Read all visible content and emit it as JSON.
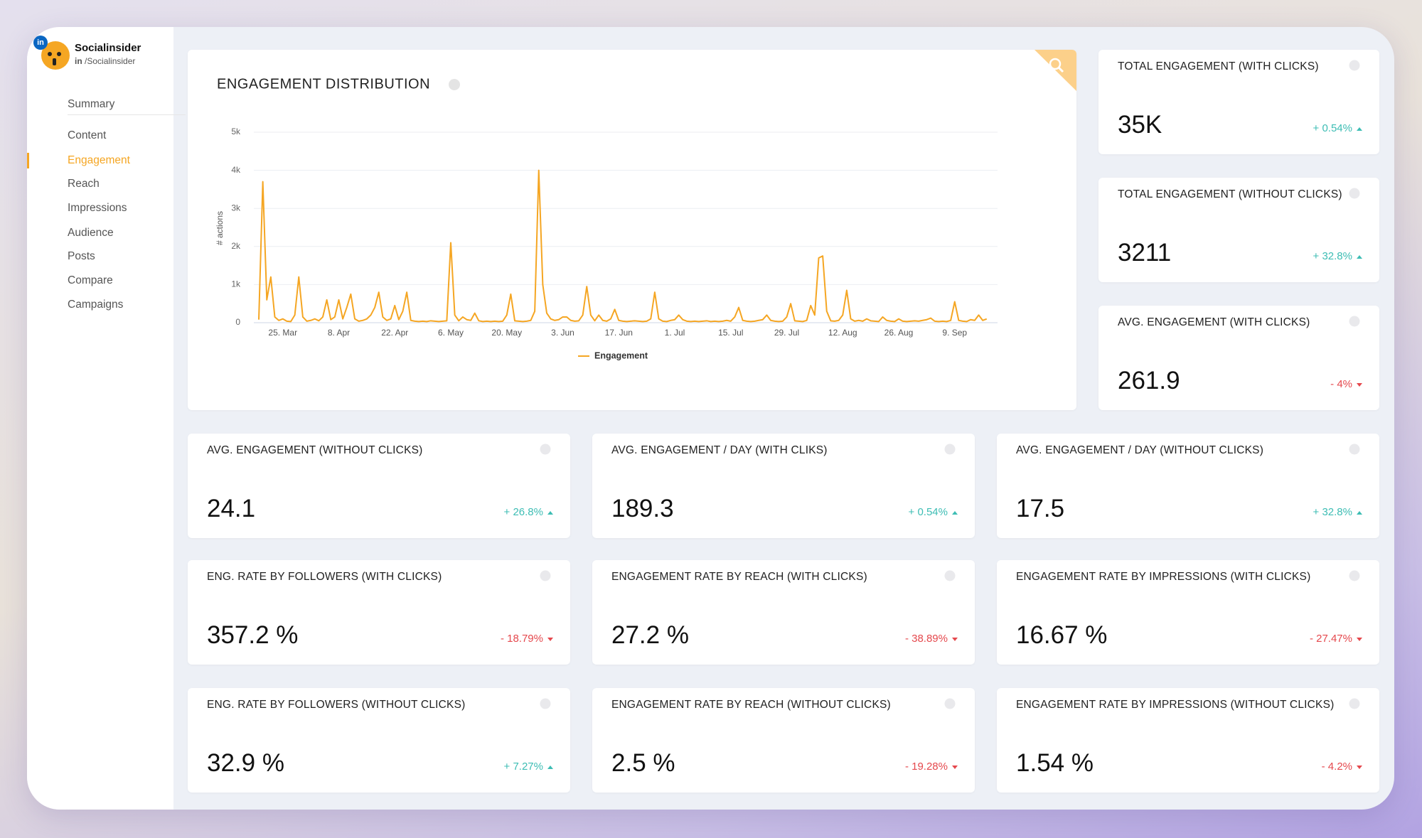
{
  "profile": {
    "network": "in",
    "name": "Socialinsider",
    "handle": "/Socialinsider"
  },
  "nav": [
    {
      "label": "Summary",
      "active": false
    },
    {
      "label": "Content",
      "active": false
    },
    {
      "label": "Engagement",
      "active": true
    },
    {
      "label": "Reach",
      "active": false
    },
    {
      "label": "Impressions",
      "active": false
    },
    {
      "label": "Audience",
      "active": false
    },
    {
      "label": "Posts",
      "active": false
    },
    {
      "label": "Compare",
      "active": false
    },
    {
      "label": "Campaigns",
      "active": false
    }
  ],
  "chart_data": {
    "type": "line",
    "title": "ENGAGEMENT DISTRIBUTION",
    "y_label": "# actions",
    "categories": [
      null,
      null,
      null,
      null,
      null,
      null,
      "25. Mar",
      null,
      null,
      null,
      null,
      null,
      null,
      null,
      null,
      null,
      null,
      null,
      null,
      null,
      "8. Apr",
      null,
      null,
      null,
      null,
      null,
      null,
      null,
      null,
      null,
      null,
      null,
      null,
      null,
      "22. Apr",
      null,
      null,
      null,
      null,
      null,
      null,
      null,
      null,
      null,
      null,
      null,
      null,
      null,
      "6. May",
      null,
      null,
      null,
      null,
      null,
      null,
      null,
      null,
      null,
      null,
      null,
      null,
      null,
      "20. May",
      null,
      null,
      null,
      null,
      null,
      null,
      null,
      null,
      null,
      null,
      null,
      null,
      null,
      "3. Jun",
      null,
      null,
      null,
      null,
      null,
      null,
      null,
      null,
      null,
      null,
      null,
      null,
      null,
      "17. Jun",
      null,
      null,
      null,
      null,
      null,
      null,
      null,
      null,
      null,
      null,
      null,
      null,
      null,
      "1. Jul",
      null,
      null,
      null,
      null,
      null,
      null,
      null,
      null,
      null,
      null,
      null,
      null,
      null,
      "15. Jul",
      null,
      null,
      null,
      null,
      null,
      null,
      null,
      null,
      null,
      null,
      null,
      null,
      null,
      "29. Jul",
      null,
      null,
      null,
      null,
      null,
      null,
      null,
      null,
      null,
      null,
      null,
      null,
      null,
      "12. Aug",
      null,
      null,
      null,
      null,
      null,
      null,
      null,
      null,
      null,
      null,
      null,
      null,
      null,
      "26. Aug",
      null,
      null,
      null,
      null,
      null,
      null,
      null,
      null,
      null,
      null,
      null,
      null,
      null,
      "9. Sep",
      null,
      null,
      null,
      null,
      null,
      null,
      null,
      null
    ],
    "series": [
      {
        "name": "Engagement",
        "color": "#f5a623",
        "values": [
          80,
          3700,
          600,
          1200,
          150,
          60,
          100,
          40,
          30,
          200,
          1200,
          150,
          40,
          60,
          100,
          50,
          150,
          600,
          80,
          150,
          600,
          100,
          400,
          750,
          100,
          40,
          60,
          100,
          200,
          400,
          800,
          150,
          60,
          100,
          450,
          80,
          300,
          800,
          60,
          40,
          30,
          40,
          30,
          50,
          40,
          30,
          40,
          50,
          2100,
          200,
          50,
          150,
          80,
          60,
          250,
          50,
          30,
          40,
          30,
          40,
          30,
          40,
          200,
          750,
          50,
          40,
          30,
          40,
          60,
          300,
          4000,
          1000,
          250,
          100,
          60,
          80,
          150,
          150,
          60,
          40,
          50,
          200,
          950,
          200,
          50,
          200,
          60,
          40,
          100,
          350,
          60,
          40,
          30,
          40,
          50,
          40,
          30,
          40,
          100,
          800,
          100,
          40,
          30,
          60,
          80,
          200,
          80,
          40,
          30,
          40,
          30,
          40,
          50,
          30,
          40,
          30,
          40,
          60,
          40,
          150,
          400,
          60,
          40,
          30,
          40,
          60,
          80,
          200,
          60,
          40,
          30,
          40,
          150,
          500,
          50,
          40,
          30,
          60,
          450,
          200,
          1700,
          1750,
          300,
          50,
          40,
          60,
          200,
          850,
          100,
          40,
          60,
          40,
          100,
          50,
          40,
          30,
          150,
          60,
          40,
          30,
          100,
          40,
          30,
          40,
          50,
          40,
          60,
          80,
          120,
          40,
          30,
          40,
          30,
          60,
          550,
          60,
          40,
          30,
          80,
          60,
          200,
          60,
          100
        ]
      }
    ],
    "ylim": [
      0,
      5000
    ],
    "yticks": [
      0,
      {
        "value": 1000,
        "label": "1k"
      },
      {
        "value": 2000,
        "label": "2k"
      },
      {
        "value": 3000,
        "label": "3k"
      },
      {
        "value": 4000,
        "label": "4k"
      },
      {
        "value": 5000,
        "label": "5k"
      }
    ],
    "grid": true
  },
  "kpis": [
    {
      "title": "TOTAL ENGAGEMENT (WITH CLICKS)",
      "value": "35K",
      "change": "+ 0.54%",
      "trend": "up"
    },
    {
      "title": "TOTAL ENGAGEMENT (WITHOUT CLICKS)",
      "value": "3211",
      "change": "+ 32.8%",
      "trend": "up"
    },
    {
      "title": "AVG. ENGAGEMENT (WITH CLICKS)",
      "value": "261.9",
      "change": "- 4%",
      "trend": "down"
    },
    {
      "title": "AVG. ENGAGEMENT (WITHOUT CLICKS)",
      "value": "24.1",
      "change": "+ 26.8%",
      "trend": "up"
    },
    {
      "title": "AVG. ENGAGEMENT / DAY (WITH CLIKS)",
      "value": "189.3",
      "change": "+ 0.54%",
      "trend": "up"
    },
    {
      "title": "AVG. ENGAGEMENT / DAY (WITHOUT CLICKS)",
      "value": "17.5",
      "change": "+ 32.8%",
      "trend": "up"
    },
    {
      "title": "ENG. RATE BY FOLLOWERS (WITH CLICKS)",
      "value": "357.2 %",
      "change": "- 18.79%",
      "trend": "down"
    },
    {
      "title": "ENGAGEMENT RATE BY REACH (WITH CLICKS)",
      "value": "27.2 %",
      "change": "- 38.89%",
      "trend": "down"
    },
    {
      "title": "ENGAGEMENT RATE BY IMPRESSIONS (WITH CLICKS)",
      "value": "16.67 %",
      "change": "- 27.47%",
      "trend": "down"
    },
    {
      "title": "ENG. RATE BY FOLLOWERS (WITHOUT CLICKS)",
      "value": "32.9 %",
      "change": "+ 7.27%",
      "trend": "up"
    },
    {
      "title": "ENGAGEMENT RATE BY REACH (WITHOUT CLICKS)",
      "value": "2.5 %",
      "change": "- 19.28%",
      "trend": "down"
    },
    {
      "title": "ENGAGEMENT RATE BY IMPRESSIONS (WITHOUT CLICKS)",
      "value": "1.54 %",
      "change": "- 4.2%",
      "trend": "down"
    }
  ]
}
